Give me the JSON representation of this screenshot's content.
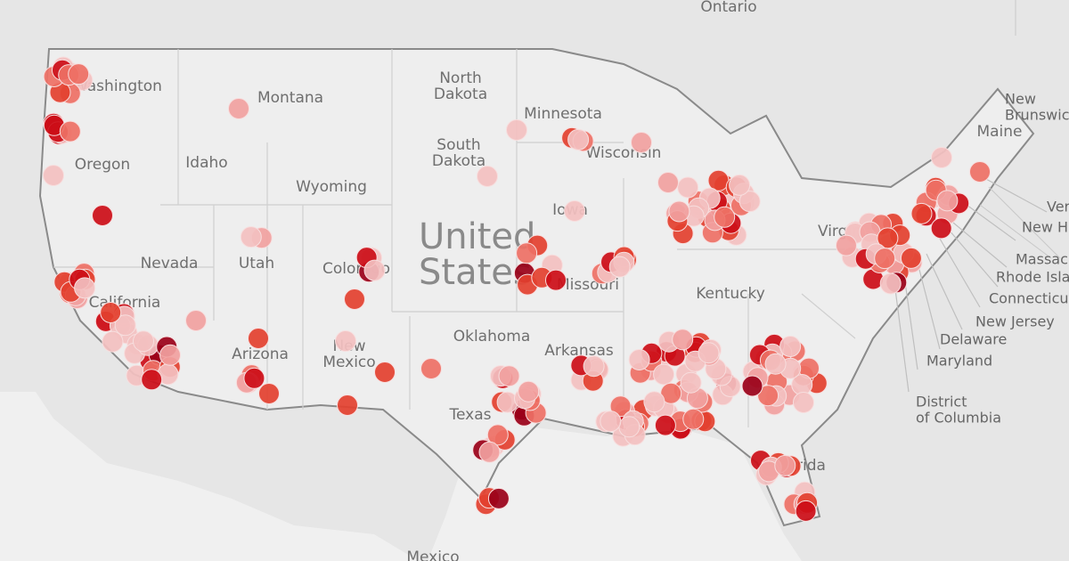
{
  "map": {
    "countries": [
      [
        "Ontario"
      ],
      [
        "United",
        "States"
      ],
      [
        "Mexico"
      ],
      [
        "New",
        "Brunswick"
      ]
    ],
    "states": [
      [
        "Washington"
      ],
      [
        "Montana"
      ],
      [
        "North",
        "Dakota"
      ],
      [
        "Minnesota"
      ],
      [
        "Oregon"
      ],
      [
        "Idaho"
      ],
      [
        "South",
        "Dakota"
      ],
      [
        "Wyoming"
      ],
      [
        "Wisconsin"
      ],
      [
        "Iowa"
      ],
      [
        "Nevada"
      ],
      [
        "Utah"
      ],
      [
        "Colorado"
      ],
      [
        "California"
      ],
      [
        "Missouri"
      ],
      [
        "Kentucky"
      ],
      [
        "Virginia"
      ],
      [
        "Arizona"
      ],
      [
        "New",
        "Mexico"
      ],
      [
        "Oklahoma"
      ],
      [
        "Arkansas"
      ],
      [
        "Texas"
      ],
      [
        "Florida"
      ],
      [
        "Maine"
      ]
    ],
    "callouts": [
      [
        "Vermont"
      ],
      [
        "New Hampshire"
      ],
      [
        "Massachusetts"
      ],
      [
        "Rhode Island"
      ],
      [
        "Connecticut"
      ],
      [
        "New Jersey"
      ],
      [
        "Delaware"
      ],
      [
        "Maryland"
      ],
      [
        "District",
        "of Columbia"
      ]
    ]
  }
}
